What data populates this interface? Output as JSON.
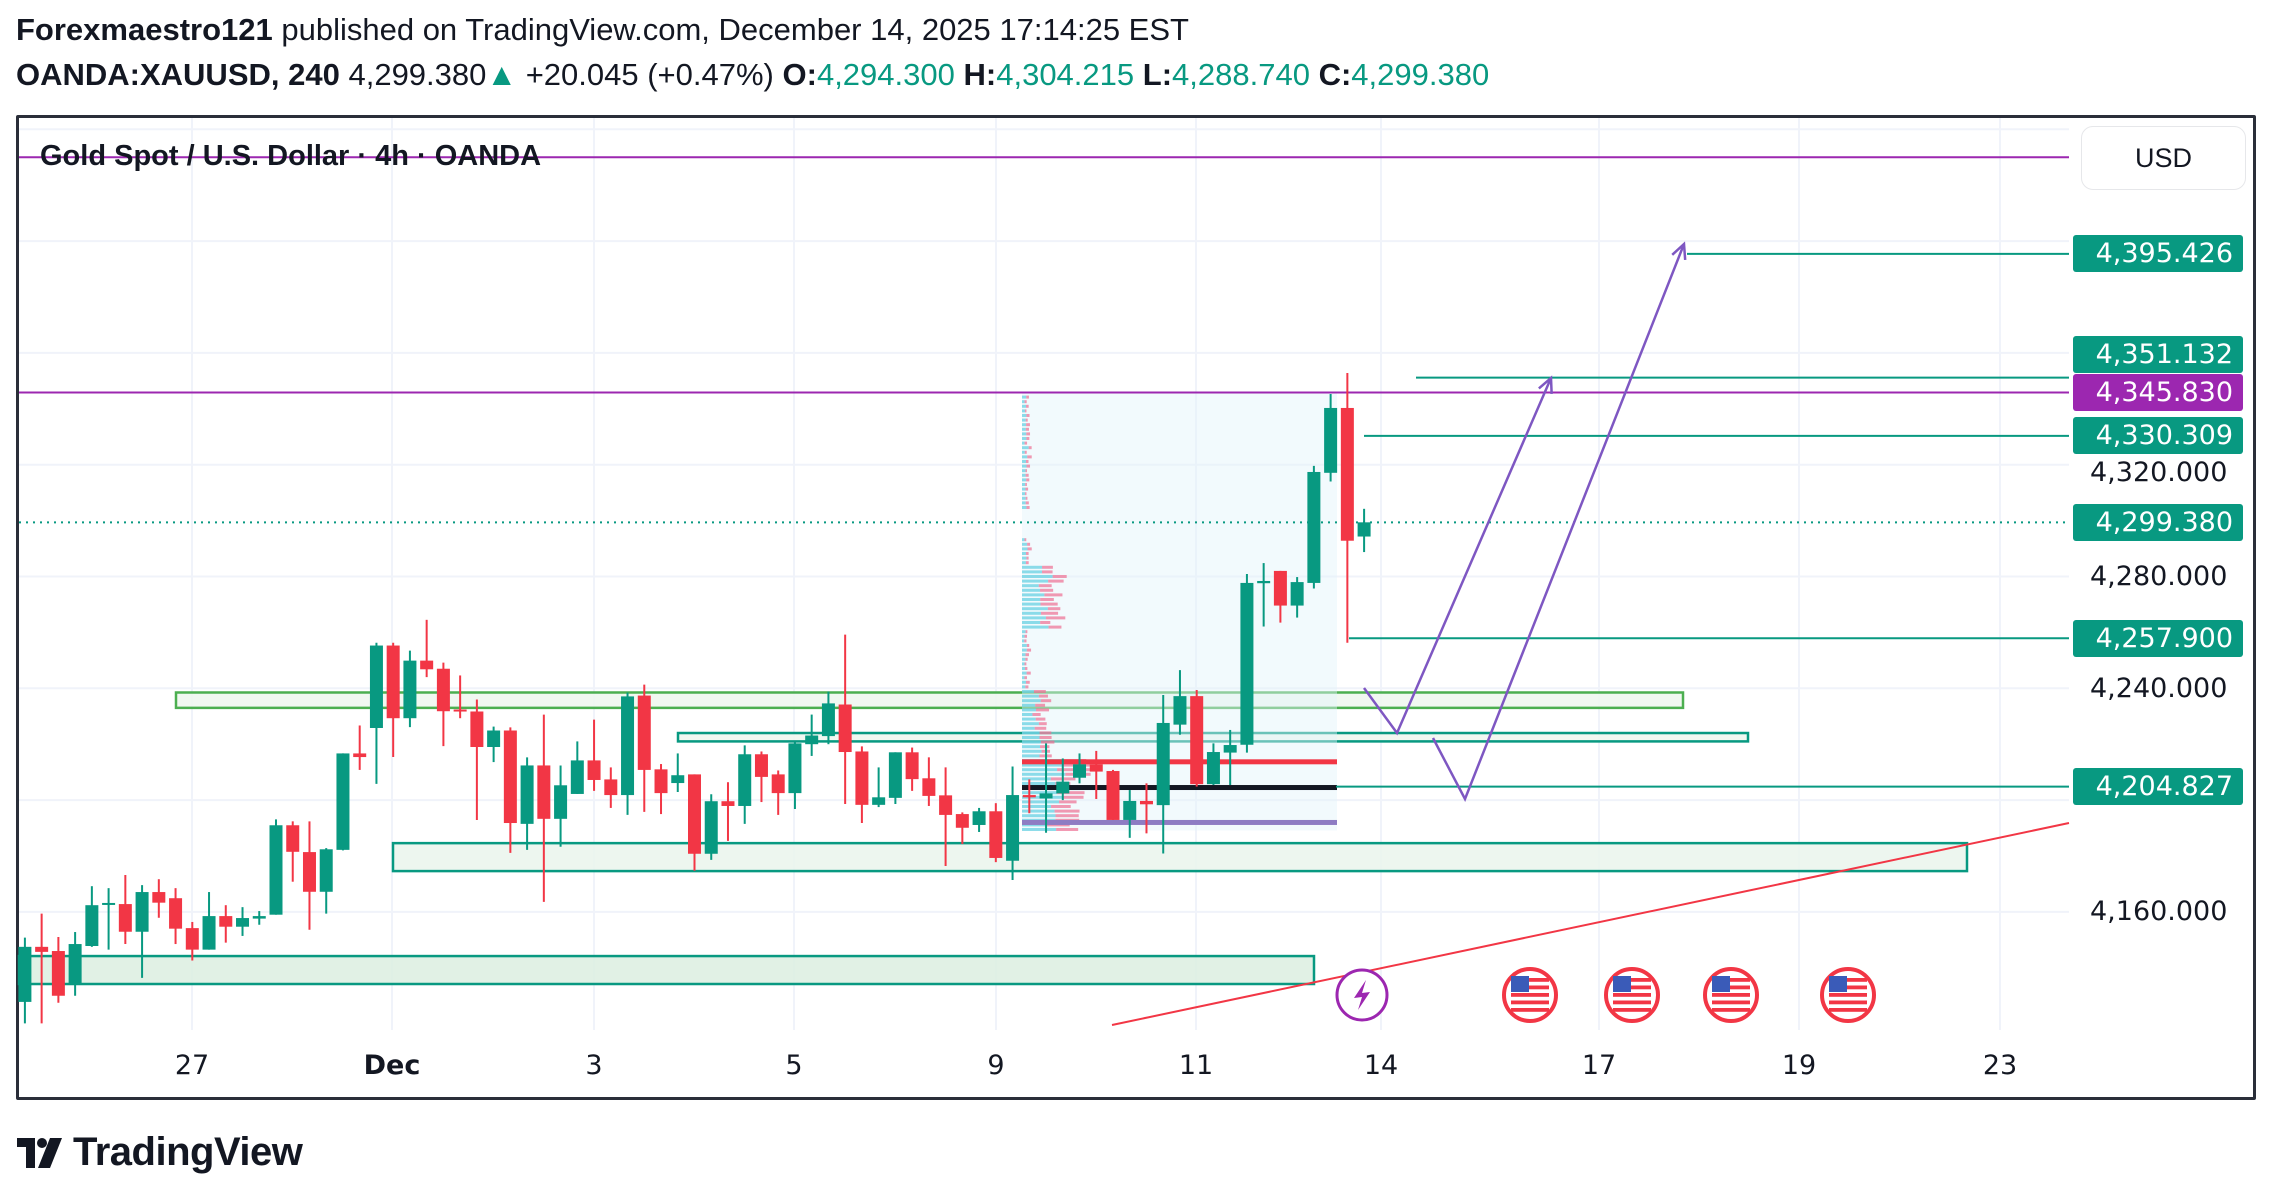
{
  "header": {
    "author": "Forexmaestro121",
    "published": " published on TradingView.com, December 14, 2025 17:14:25 EST",
    "symbol": "OANDA:XAUUSD, 240",
    "last": "4,299.380",
    "change_arrow": "▲",
    "change": "+20.045 (+0.47%)",
    "o_label": "O:",
    "o": "4,294.300",
    "h_label": "H:",
    "h": "4,304.215",
    "l_label": "L:",
    "l": "4,288.740",
    "c_label": "C:",
    "c": "4,299.380"
  },
  "chart_title": "Gold Spot / U.S. Dollar · 4h · OANDA",
  "currency_button": "USD",
  "brand": "TradingView",
  "colors": {
    "up": "#089981",
    "down": "#f23645",
    "purple": "#9c27b0",
    "projection": "#7e57c2",
    "zone_border_green": "#4caf50"
  },
  "chart_data": {
    "type": "candlestick",
    "timeframe": "4h",
    "ylim": [
      4110,
      4460
    ],
    "grid": true,
    "y_ticks": [
      "4,160.000",
      "4,240.000",
      "4,280.000",
      "4,320.000"
    ],
    "x_ticks": [
      "27",
      "Dec",
      "3",
      "5",
      "9",
      "11",
      "14",
      "17",
      "19",
      "23"
    ],
    "ohlc": [
      [
        4127.8,
        4150.8,
        4120.1,
        4147.5
      ],
      [
        4147.5,
        4159.4,
        4120.1,
        4145.7
      ],
      [
        4146.0,
        4151.0,
        4127.5,
        4130.0
      ],
      [
        4134.0,
        4152.8,
        4130.0,
        4148.5
      ],
      [
        4147.8,
        4169.2,
        4147.5,
        4162.4
      ],
      [
        4162.6,
        4168.5,
        4146.5,
        4163.2
      ],
      [
        4162.8,
        4173.2,
        4148.5,
        4152.9
      ],
      [
        4152.9,
        4169.6,
        4136.4,
        4167.1
      ],
      [
        4167.1,
        4171.7,
        4157.9,
        4163.3
      ],
      [
        4164.9,
        4168.5,
        4148.5,
        4154.0
      ],
      [
        4154.2,
        4156.4,
        4142.6,
        4146.5
      ],
      [
        4146.5,
        4167.1,
        4146.5,
        4158.5
      ],
      [
        4158.5,
        4162.4,
        4149.0,
        4154.7
      ],
      [
        4154.7,
        4161.7,
        4151.4,
        4157.8
      ],
      [
        4157.6,
        4160.3,
        4155.4,
        4158.5
      ],
      [
        4159.0,
        4193.1,
        4159.0,
        4191.0
      ],
      [
        4191.0,
        4192.4,
        4170.8,
        4181.5
      ],
      [
        4181.4,
        4192.4,
        4153.6,
        4167.2
      ],
      [
        4167.2,
        4182.8,
        4159.4,
        4182.4
      ],
      [
        4182.2,
        4216.7,
        4182.0,
        4216.7
      ],
      [
        4216.7,
        4226.7,
        4210.8,
        4215.4
      ],
      [
        4225.8,
        4256.3,
        4205.8,
        4255.3
      ],
      [
        4255.3,
        4256.3,
        4215.4,
        4229.3
      ],
      [
        4229.3,
        4253.5,
        4226.1,
        4249.9
      ],
      [
        4249.9,
        4264.5,
        4244.0,
        4246.8
      ],
      [
        4247.0,
        4249.2,
        4219.3,
        4231.8
      ],
      [
        4232.4,
        4244.6,
        4229.3,
        4231.8
      ],
      [
        4231.7,
        4236.0,
        4192.9,
        4219.0
      ],
      [
        4219.0,
        4226.3,
        4213.6,
        4224.9
      ],
      [
        4224.9,
        4226.0,
        4181.1,
        4191.8
      ],
      [
        4191.5,
        4215.3,
        4182.2,
        4212.4
      ],
      [
        4212.4,
        4230.6,
        4163.6,
        4193.3
      ],
      [
        4193.3,
        4212.4,
        4183.3,
        4205.3
      ],
      [
        4202.2,
        4221.0,
        4202.2,
        4214.2
      ],
      [
        4214.2,
        4228.8,
        4203.3,
        4207.2
      ],
      [
        4207.4,
        4211.7,
        4197.2,
        4201.8
      ],
      [
        4201.8,
        4238.5,
        4194.7,
        4237.1
      ],
      [
        4237.4,
        4241.3,
        4195.8,
        4210.8
      ],
      [
        4211.0,
        4212.9,
        4195.0,
        4202.5
      ],
      [
        4206.1,
        4216.7,
        4202.9,
        4208.9
      ],
      [
        4209.2,
        4209.2,
        4174.7,
        4180.8
      ],
      [
        4180.8,
        4202.1,
        4178.6,
        4199.6
      ],
      [
        4199.6,
        4206.4,
        4185.4,
        4197.9
      ],
      [
        4197.9,
        4219.6,
        4191.5,
        4216.4
      ],
      [
        4216.4,
        4217.4,
        4199.3,
        4208.3
      ],
      [
        4209.2,
        4210.6,
        4194.7,
        4202.5
      ],
      [
        4202.5,
        4221.2,
        4196.8,
        4220.3
      ],
      [
        4220.0,
        4230.6,
        4215.8,
        4223.1
      ],
      [
        4222.9,
        4238.8,
        4220.0,
        4234.6
      ],
      [
        4234.2,
        4259.2,
        4198.6,
        4217.2
      ],
      [
        4217.4,
        4219.2,
        4191.8,
        4198.3
      ],
      [
        4198.3,
        4211.7,
        4197.5,
        4201.0
      ],
      [
        4200.8,
        4217.1,
        4198.6,
        4217.1
      ],
      [
        4217.1,
        4218.8,
        4203.3,
        4207.5
      ],
      [
        4207.8,
        4215.3,
        4197.9,
        4201.5
      ],
      [
        4201.7,
        4211.7,
        4176.4,
        4194.7
      ],
      [
        4195.0,
        4195.6,
        4184.3,
        4190.1
      ],
      [
        4191.1,
        4197.2,
        4188.6,
        4196.0
      ],
      [
        4196.0,
        4198.9,
        4177.8,
        4179.3
      ],
      [
        4178.3,
        4212.0,
        4171.4,
        4201.8
      ],
      [
        4201.8,
        4207.4,
        4195.3,
        4201.0
      ],
      [
        4200.6,
        4220.3,
        4188.3,
        4202.4
      ],
      [
        4202.4,
        4214.9,
        4200.0,
        4206.6
      ],
      [
        4208.0,
        4216.7,
        4206.0,
        4212.8
      ],
      [
        4212.8,
        4217.6,
        4200.4,
        4210.2
      ],
      [
        4210.4,
        4210.8,
        4192.9,
        4192.9
      ],
      [
        4192.9,
        4203.6,
        4186.5,
        4199.7
      ],
      [
        4199.7,
        4206.0,
        4188.1,
        4198.5
      ],
      [
        4198.2,
        4237.6,
        4180.9,
        4227.6
      ],
      [
        4227.0,
        4246.5,
        4223.4,
        4237.2
      ],
      [
        4237.2,
        4239.4,
        4204.8,
        4205.7
      ],
      [
        4205.7,
        4220.3,
        4205.4,
        4217.2
      ],
      [
        4217.0,
        4225.1,
        4205.4,
        4219.7
      ],
      [
        4219.8,
        4280.9,
        4217.0,
        4277.7
      ],
      [
        4277.6,
        4284.8,
        4262.1,
        4278.4
      ],
      [
        4282.0,
        4282.0,
        4263.5,
        4269.6
      ],
      [
        4269.6,
        4279.8,
        4265.3,
        4278.0
      ],
      [
        4277.7,
        4319.6,
        4275.7,
        4317.4
      ],
      [
        4317.1,
        4345.3,
        4314.0,
        4340.3
      ],
      [
        4340.3,
        4352.8,
        4256.3,
        4292.8
      ],
      [
        4294.3,
        4304.215,
        4288.74,
        4299.38
      ]
    ],
    "horizontal_levels": [
      {
        "price": 4430.0,
        "color": "#9c27b0",
        "label": ""
      },
      {
        "price": 4395.426,
        "color": "#089981",
        "label": "4,395.426"
      },
      {
        "price": 4351.132,
        "color": "#089981",
        "label": "4,351.132"
      },
      {
        "price": 4345.83,
        "color": "#9c27b0",
        "label": "4,345.830"
      },
      {
        "price": 4330.309,
        "color": "#089981",
        "label": "4,330.309"
      },
      {
        "price": 4299.38,
        "color": "#089981",
        "label": "4,299.380"
      },
      {
        "price": 4257.9,
        "color": "#089981",
        "label": "4,257.900"
      },
      {
        "price": 4204.827,
        "color": "#089981",
        "label": "4,204.827"
      }
    ],
    "zones": [
      {
        "top": 4238.5,
        "bottom": 4233.0,
        "border": "#4caf50"
      },
      {
        "top": 4224.0,
        "bottom": 4221.0,
        "border": "#089981"
      },
      {
        "top": 4184.6,
        "bottom": 4174.6,
        "border": "#089981"
      },
      {
        "top": 4144.2,
        "bottom": 4134.2,
        "border": "#089981"
      }
    ],
    "profile_levels": {
      "red": 4213.7,
      "black": 4204.5,
      "purple": 4192.0,
      "top": 4345.8,
      "bottom": 4192.0
    },
    "events": [
      "lightning",
      "us-flag",
      "us-flag",
      "us-flag",
      "us-flag"
    ]
  }
}
